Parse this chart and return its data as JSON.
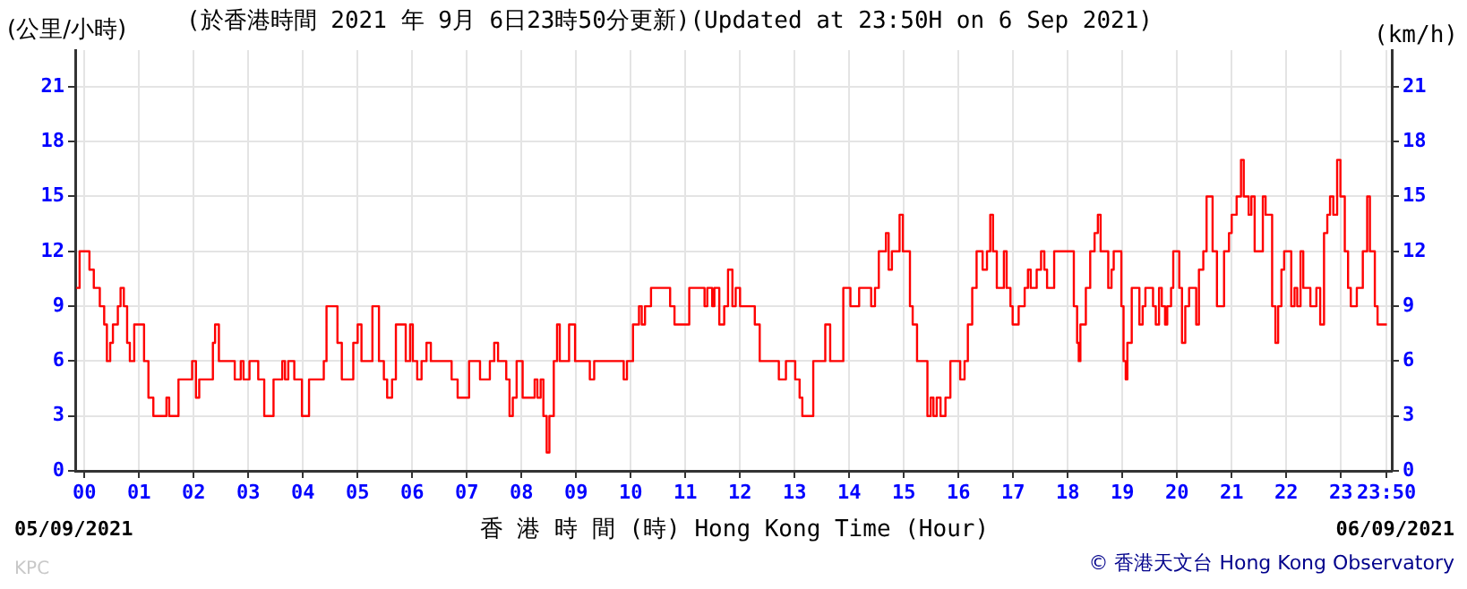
{
  "chart_data": {
    "type": "step",
    "title": "(於香港時間 2021 年 9月 6日23時50分更新)(Updated at 23:50H on 6 Sep 2021)",
    "ylabel": "(公里/小時)",
    "y2label": "(km/h)",
    "xlabel": "香 港 時 間 (時) Hong Kong Time (Hour)",
    "annotations": [
      "05/09/2021",
      "06/09/2021",
      "© 香港天文台 Hong Kong Observatory",
      "KPC"
    ],
    "x": [
      -0.15,
      -0.09,
      0,
      0.09,
      0.17,
      0.28,
      0.36,
      0.41,
      0.47,
      0.52,
      0.61,
      0.66,
      0.72,
      0.78,
      0.83,
      0.91,
      1.04,
      1.09,
      1.17,
      1.26,
      1.45,
      1.5,
      1.55,
      1.66,
      1.72,
      1.93,
      1.97,
      2.04,
      2.1,
      2.28,
      2.35,
      2.39,
      2.46,
      2.7,
      2.75,
      2.86,
      2.91,
      3.02,
      3.18,
      3.29,
      3.35,
      3.46,
      3.62,
      3.67,
      3.73,
      3.84,
      3.98,
      4.02,
      4.11,
      4.33,
      4.38,
      4.43,
      4.57,
      4.63,
      4.71,
      4.87,
      4.92,
      5,
      5.07,
      5.2,
      5.27,
      5.33,
      5.39,
      5.48,
      5.54,
      5.63,
      5.7,
      5.85,
      5.88,
      5.96,
      6.01,
      6.09,
      6.17,
      6.26,
      6.34,
      6.61,
      6.72,
      6.83,
      6.99,
      7.04,
      7.17,
      7.24,
      7.37,
      7.42,
      7.5,
      7.57,
      7.64,
      7.72,
      7.78,
      7.84,
      7.91,
      8.02,
      8.19,
      8.24,
      8.29,
      8.35,
      8.4,
      8.46,
      8.51,
      8.59,
      8.65,
      8.7,
      8.81,
      8.87,
      8.92,
      8.98,
      9.2,
      9.25,
      9.33,
      9.82,
      9.87,
      9.93,
      10.04,
      10.15,
      10.2,
      10.26,
      10.37,
      10.64,
      10.72,
      10.8,
      11.02,
      11.07,
      11.29,
      11.35,
      11.4,
      11.49,
      11.53,
      11.62,
      11.71,
      11.78,
      11.86,
      11.92,
      12,
      12.16,
      12.27,
      12.36,
      12.65,
      12.71,
      12.8,
      12.84,
      12.93,
      13.01,
      13.09,
      13.14,
      13.28,
      13.34,
      13.49,
      13.56,
      13.6,
      13.65,
      13.8,
      13.89,
      13.99,
      14.02,
      14.13,
      14.18,
      14.32,
      14.4,
      14.47,
      14.54,
      14.62,
      14.67,
      14.72,
      14.78,
      14.89,
      14.92,
      14.98,
      15.05,
      15.11,
      15.16,
      15.24,
      15.38,
      15.43,
      15.49,
      15.54,
      15.6,
      15.67,
      15.76,
      15.85,
      15.96,
      16.03,
      16.11,
      16.17,
      16.25,
      16.33,
      16.39,
      16.44,
      16.52,
      16.58,
      16.63,
      16.7,
      16.77,
      16.83,
      16.88,
      16.95,
      16.99,
      17.08,
      17.1,
      17.16,
      17.21,
      17.27,
      17.32,
      17.38,
      17.43,
      17.51,
      17.57,
      17.62,
      17.71,
      17.75,
      18.06,
      18.11,
      18.17,
      18.2,
      18.23,
      18.33,
      18.41,
      18.49,
      18.55,
      18.6,
      18.69,
      18.74,
      18.8,
      18.84,
      18.93,
      18.98,
      19.02,
      19.06,
      19.09,
      19.17,
      19.26,
      19.31,
      19.37,
      19.42,
      19.5,
      19.56,
      19.61,
      19.67,
      19.72,
      19.78,
      19.82,
      19.89,
      19.93,
      20,
      20.04,
      20.09,
      20.15,
      20.22,
      20.29,
      20.35,
      20.4,
      20.48,
      20.54,
      20.6,
      20.65,
      20.73,
      20.81,
      20.86,
      20.95,
      21,
      21.09,
      21.17,
      21.22,
      21.31,
      21.36,
      21.42,
      21.51,
      21.57,
      21.62,
      21.68,
      21.74,
      21.8,
      21.85,
      21.91,
      21.96,
      22.04,
      22.09,
      22.15,
      22.2,
      22.26,
      22.31,
      22.37,
      22.44,
      22.55,
      22.62,
      22.69,
      22.75,
      22.8,
      22.86,
      22.93,
      22.99,
      23.07,
      23.13,
      23.18,
      23.24,
      23.29,
      23.35,
      23.4,
      23.48,
      23.53,
      23.62,
      23.67,
      23.84
    ],
    "series": [
      {
        "color": "#ff0000",
        "values": [
          10,
          12,
          12,
          11,
          10,
          9,
          8,
          6,
          7,
          8,
          9,
          10,
          9,
          7,
          6,
          8,
          8,
          6,
          4,
          3,
          3,
          4,
          3,
          3,
          5,
          5,
          6,
          4,
          5,
          5,
          7,
          8,
          6,
          6,
          5,
          6,
          5,
          6,
          5,
          3,
          3,
          5,
          6,
          5,
          6,
          5,
          3,
          3,
          5,
          5,
          6,
          9,
          9,
          7,
          5,
          5,
          7,
          8,
          6,
          6,
          9,
          9,
          6,
          5,
          4,
          5,
          8,
          8,
          6,
          8,
          6,
          5,
          6,
          7,
          6,
          6,
          5,
          4,
          4,
          6,
          6,
          5,
          5,
          6,
          7,
          6,
          6,
          5,
          3,
          4,
          6,
          4,
          4,
          5,
          4,
          5,
          3,
          1,
          3,
          6,
          8,
          6,
          6,
          8,
          8,
          6,
          6,
          5,
          6,
          6,
          5,
          6,
          8,
          9,
          8,
          9,
          10,
          10,
          9,
          8,
          8,
          10,
          10,
          9,
          10,
          9,
          10,
          8,
          9,
          11,
          9,
          10,
          9,
          9,
          8,
          6,
          6,
          5,
          5,
          6,
          6,
          5,
          4,
          3,
          3,
          6,
          6,
          8,
          8,
          6,
          6,
          10,
          10,
          9,
          9,
          10,
          10,
          9,
          10,
          12,
          12,
          13,
          11,
          12,
          12,
          14,
          12,
          12,
          9,
          8,
          6,
          6,
          3,
          4,
          3,
          4,
          3,
          4,
          6,
          6,
          5,
          6,
          8,
          10,
          12,
          12,
          11,
          12,
          14,
          12,
          10,
          10,
          12,
          10,
          9,
          8,
          8,
          9,
          9,
          10,
          11,
          10,
          10,
          11,
          12,
          11,
          10,
          10,
          12,
          12,
          9,
          7,
          6,
          8,
          10,
          12,
          13,
          14,
          12,
          12,
          10,
          11,
          12,
          12,
          9,
          6,
          5,
          7,
          10,
          10,
          8,
          9,
          10,
          10,
          9,
          8,
          10,
          9,
          8,
          9,
          10,
          12,
          12,
          10,
          7,
          9,
          10,
          10,
          8,
          11,
          12,
          15,
          15,
          12,
          9,
          9,
          12,
          13,
          14,
          15,
          17,
          15,
          14,
          15,
          12,
          12,
          15,
          14,
          14,
          9,
          7,
          9,
          11,
          12,
          12,
          9,
          10,
          9,
          12,
          10,
          10,
          9,
          10,
          8,
          13,
          14,
          15,
          14,
          17,
          15,
          12,
          10,
          9,
          9,
          10,
          10,
          12,
          15,
          12,
          9,
          8,
          8
        ]
      }
    ],
    "xlim": [
      -0.17,
      23.93
    ],
    "xticks": [
      {
        "value": 0,
        "label": "00"
      },
      {
        "value": 1,
        "label": "01"
      },
      {
        "value": 2,
        "label": "02"
      },
      {
        "value": 3,
        "label": "03"
      },
      {
        "value": 4,
        "label": "04"
      },
      {
        "value": 5,
        "label": "05"
      },
      {
        "value": 6,
        "label": "06"
      },
      {
        "value": 7,
        "label": "07"
      },
      {
        "value": 8,
        "label": "08"
      },
      {
        "value": 9,
        "label": "09"
      },
      10,
      11,
      12,
      13,
      14,
      15,
      16,
      17,
      18,
      19,
      20,
      21,
      22,
      23,
      {
        "value": 23.833,
        "label": "23:50"
      }
    ],
    "ylim": [
      0,
      23
    ],
    "yticks": [
      0,
      3,
      6,
      9,
      12,
      15,
      18,
      21
    ],
    "y2lim": [
      0,
      23
    ],
    "y2ticks": [
      0,
      3,
      6,
      9,
      12,
      15,
      18,
      21
    ],
    "grid": true,
    "marker": "none"
  }
}
